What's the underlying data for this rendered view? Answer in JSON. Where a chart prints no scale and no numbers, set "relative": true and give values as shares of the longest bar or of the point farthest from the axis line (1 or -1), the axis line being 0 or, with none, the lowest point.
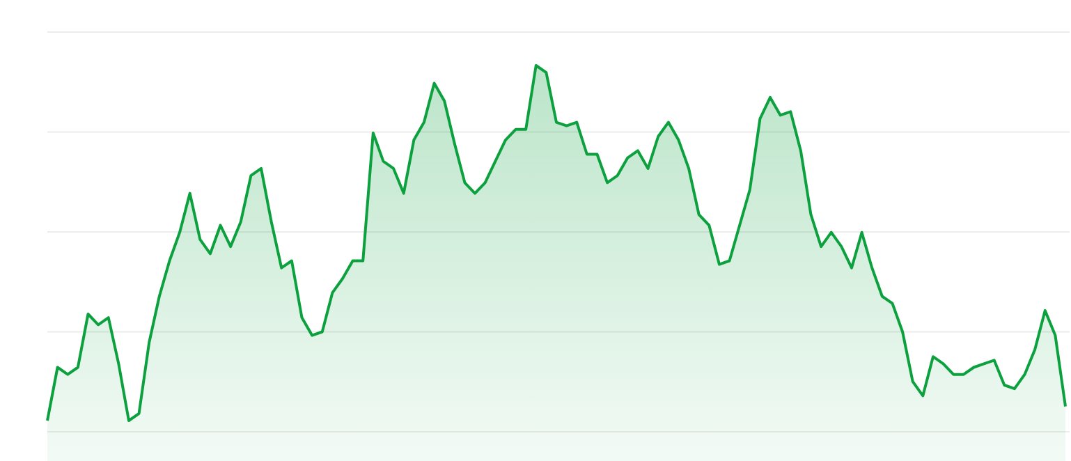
{
  "chart_data": {
    "type": "area",
    "relative": true,
    "grid": "y",
    "categories": [
      null,
      null,
      null,
      null,
      null,
      null,
      null,
      null,
      null,
      null,
      null,
      null,
      null,
      null,
      null,
      null,
      null,
      null,
      null,
      null,
      null,
      null,
      null,
      null,
      null,
      null,
      null,
      null,
      null,
      null,
      null,
      null,
      null,
      null,
      null,
      null,
      null,
      null,
      null,
      null,
      null,
      null,
      null,
      null,
      null,
      null,
      null,
      null,
      null,
      null,
      null,
      null,
      null,
      null,
      null,
      null,
      null,
      null,
      null,
      null,
      null,
      null,
      null,
      null,
      null,
      null,
      null,
      null,
      null,
      null,
      null,
      null,
      null,
      null,
      null,
      null,
      null,
      null,
      null,
      null,
      null,
      null,
      null,
      null,
      null,
      null,
      null,
      null,
      null,
      null,
      null,
      null,
      null,
      null,
      null,
      null,
      null,
      null,
      null,
      null,
      null
    ],
    "series": [
      {
        "color": "#0ca13e",
        "values": [
          0,
          0.15,
          0.13,
          0.15,
          0.3,
          0.27,
          0.29,
          0.16,
          0,
          0.02,
          0.22,
          0.35,
          0.45,
          0.53,
          0.64,
          0.51,
          0.47,
          0.55,
          0.49,
          0.56,
          0.69,
          0.71,
          0.56,
          0.43,
          0.45,
          0.29,
          0.24,
          0.25,
          0.36,
          0.4,
          0.45,
          0.45,
          0.81,
          0.73,
          0.71,
          0.64,
          0.79,
          0.84,
          0.95,
          0.9,
          0.78,
          0.67,
          0.64,
          0.67,
          0.73,
          0.79,
          0.82,
          0.82,
          1,
          0.98,
          0.84,
          0.83,
          0.84,
          0.75,
          0.75,
          0.67,
          0.69,
          0.74,
          0.76,
          0.71,
          0.8,
          0.84,
          0.79,
          0.71,
          0.58,
          0.55,
          0.44,
          0.45,
          0.55,
          0.65,
          0.85,
          0.91,
          0.86,
          0.87,
          0.76,
          0.58,
          0.49,
          0.53,
          0.49,
          0.43,
          0.53,
          0.43,
          0.35,
          0.33,
          0.25,
          0.11,
          0.07,
          0.18,
          0.16,
          0.13,
          0.13,
          0.15,
          0.16,
          0.17,
          0.1,
          0.09,
          0.13,
          0.2,
          0.31,
          0.24,
          0.04
        ]
      }
    ]
  }
}
